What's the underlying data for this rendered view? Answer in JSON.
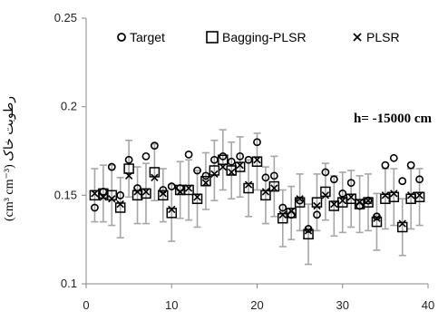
{
  "chart_data": {
    "type": "scatter",
    "title": "",
    "xlabel": "",
    "ylabel": "(cm³ cm⁻³) رطوبت خاک",
    "xlim": [
      0,
      40
    ],
    "ylim": [
      0.1,
      0.25
    ],
    "xticks": [
      "0",
      "10",
      "20",
      "30",
      "40"
    ],
    "yticks": [
      "0.1",
      "0.15",
      "0.2",
      "0.25"
    ],
    "annotation": "h= -15000 cm",
    "legend_position": "top",
    "series": [
      {
        "name": "Target",
        "marker": "circle",
        "x": [
          1,
          2,
          3,
          4,
          5,
          6,
          7,
          8,
          9,
          10,
          11,
          12,
          13,
          14,
          15,
          16,
          17,
          18,
          19,
          20,
          21,
          22,
          23,
          24,
          25,
          26,
          27,
          28,
          29,
          30,
          31,
          32,
          33,
          34,
          35,
          36,
          37,
          38,
          39
        ],
        "values": [
          0.143,
          0.152,
          0.166,
          0.15,
          0.17,
          0.154,
          0.172,
          0.178,
          0.153,
          0.155,
          0.154,
          0.173,
          0.164,
          0.161,
          0.17,
          0.172,
          0.169,
          0.172,
          0.17,
          0.18,
          0.16,
          0.161,
          0.143,
          0.139,
          0.147,
          0.131,
          0.139,
          0.163,
          0.159,
          0.151,
          0.157,
          0.144,
          0.147,
          0.138,
          0.167,
          0.171,
          0.158,
          0.167,
          0.159
        ]
      },
      {
        "name": "Bagging-PLSR",
        "marker": "square",
        "x": [
          1,
          2,
          3,
          4,
          5,
          6,
          7,
          8,
          9,
          10,
          11,
          12,
          13,
          14,
          15,
          16,
          17,
          18,
          19,
          20,
          21,
          22,
          23,
          24,
          25,
          26,
          27,
          28,
          29,
          30,
          31,
          32,
          33,
          34,
          35,
          36,
          37,
          38,
          39
        ],
        "values": [
          0.15,
          0.151,
          0.15,
          0.143,
          0.165,
          0.15,
          0.151,
          0.163,
          0.15,
          0.14,
          0.153,
          0.153,
          0.148,
          0.158,
          0.164,
          0.17,
          0.164,
          0.166,
          0.154,
          0.169,
          0.15,
          0.155,
          0.137,
          0.14,
          0.146,
          0.128,
          0.146,
          0.152,
          0.144,
          0.146,
          0.148,
          0.145,
          0.146,
          0.135,
          0.148,
          0.149,
          0.132,
          0.148,
          0.149
        ]
      },
      {
        "name": "PLSR",
        "marker": "x",
        "x": [
          1,
          2,
          3,
          4,
          5,
          6,
          7,
          8,
          9,
          10,
          11,
          12,
          13,
          14,
          15,
          16,
          17,
          18,
          19,
          20,
          21,
          22,
          23,
          24,
          25,
          26,
          27,
          28,
          29,
          30,
          31,
          32,
          33,
          34,
          35,
          36,
          37,
          38,
          39
        ],
        "values": [
          0.151,
          0.149,
          0.148,
          0.145,
          0.161,
          0.152,
          0.152,
          0.16,
          0.151,
          0.142,
          0.152,
          0.154,
          0.149,
          0.157,
          0.162,
          0.166,
          0.163,
          0.167,
          0.156,
          0.17,
          0.152,
          0.154,
          0.139,
          0.141,
          0.148,
          0.13,
          0.144,
          0.15,
          0.145,
          0.147,
          0.149,
          0.146,
          0.147,
          0.137,
          0.15,
          0.151,
          0.134,
          0.15,
          0.15
        ]
      }
    ],
    "error_bars": {
      "series": "Bagging-PLSR",
      "plus_minus": [
        0.015,
        0.016,
        0.017,
        0.017,
        0.016,
        0.016,
        0.017,
        0.016,
        0.015,
        0.016,
        0.016,
        0.017,
        0.016,
        0.016,
        0.017,
        0.017,
        0.016,
        0.017,
        0.016,
        0.016,
        0.016,
        0.017,
        0.016,
        0.015,
        0.016,
        0.017,
        0.016,
        0.016,
        0.017,
        0.017,
        0.016,
        0.016,
        0.016,
        0.016,
        0.017,
        0.016,
        0.016,
        0.017,
        0.016
      ]
    },
    "colors": {
      "markers": "#000000",
      "error_bars": "#a6a6a6",
      "axis": "#888888"
    },
    "grid": false
  }
}
